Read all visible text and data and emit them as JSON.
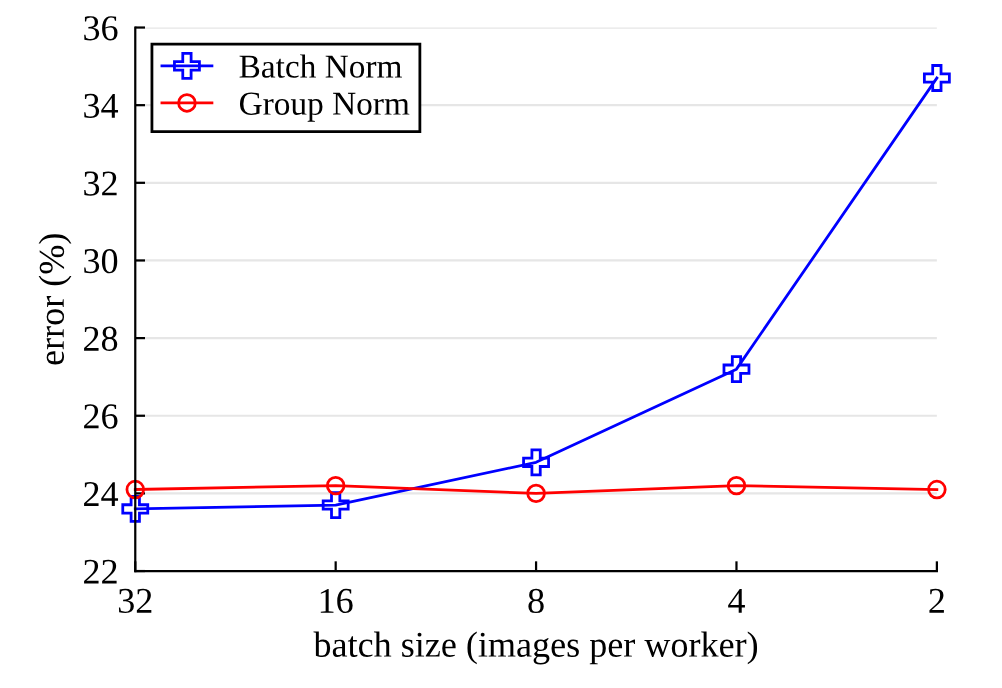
{
  "chart_data": {
    "type": "line",
    "xlabel": "batch size (images per worker)",
    "ylabel": "error (%)",
    "categories": [
      "32",
      "16",
      "8",
      "4",
      "2"
    ],
    "series": [
      {
        "name": "Batch Norm",
        "color": "#0000ff",
        "marker": "cross",
        "values": [
          23.6,
          23.7,
          24.8,
          27.2,
          34.7
        ]
      },
      {
        "name": "Group Norm",
        "color": "#ff0000",
        "marker": "circle",
        "values": [
          24.1,
          24.2,
          24.0,
          24.2,
          24.1
        ]
      }
    ],
    "ylim": [
      22,
      36
    ],
    "yticks": [
      22,
      24,
      26,
      28,
      30,
      32,
      34,
      36
    ],
    "grid": "y",
    "legend": "top left",
    "line_style": "solid"
  }
}
